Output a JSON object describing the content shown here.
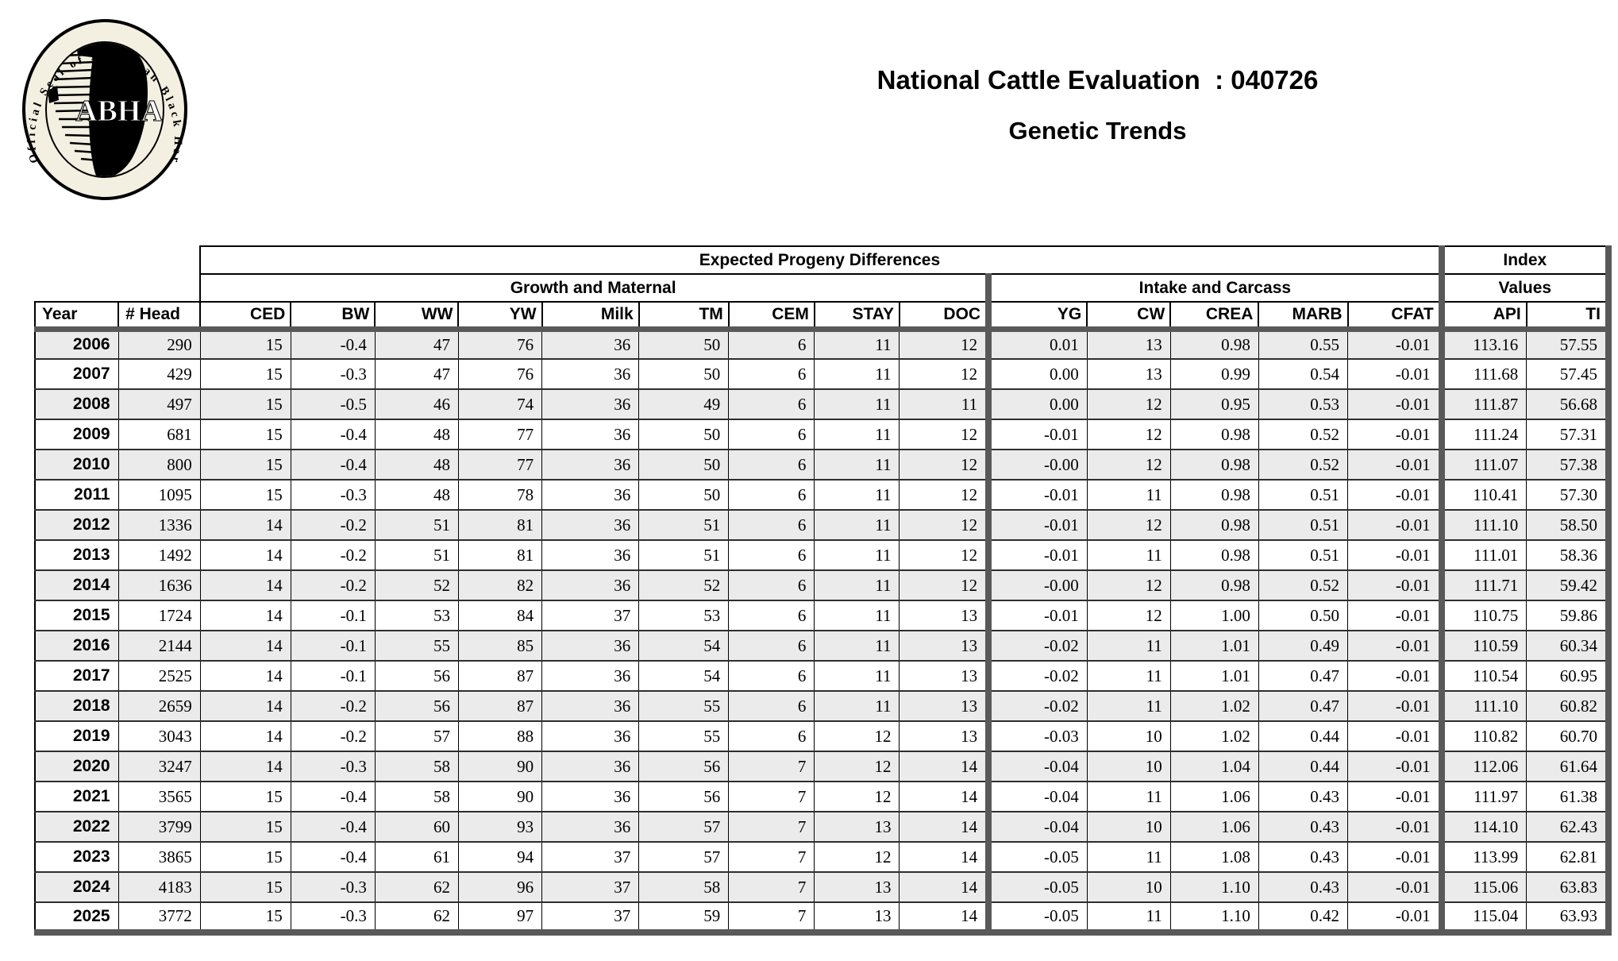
{
  "logo": {
    "seal_text": "Official Seal of American Black Hereford Association",
    "seal_abbr": "ABHA"
  },
  "header": {
    "title": "National Cattle Evaluation  : 040726",
    "subtitle": "Genetic Trends"
  },
  "table": {
    "group_headers": {
      "epd": "Expected Progeny Differences",
      "growth": "Growth and Maternal",
      "intake": "Intake and Carcass",
      "index": "Index",
      "values": "Values"
    },
    "columns": [
      "Year",
      "# Head",
      "CED",
      "BW",
      "WW",
      "YW",
      "Milk",
      "TM",
      "CEM",
      "STAY",
      "DOC",
      "YG",
      "CW",
      "CREA",
      "MARB",
      "CFAT",
      "API",
      "TI"
    ],
    "column_keys": [
      "year",
      "head",
      "ced",
      "bw",
      "ww",
      "yw",
      "milk",
      "tm",
      "cem",
      "stay",
      "doc",
      "yg",
      "cw",
      "crea",
      "marb",
      "cfat",
      "api",
      "ti"
    ],
    "rows": [
      [
        "2006",
        "290",
        "15",
        "-0.4",
        "47",
        "76",
        "36",
        "50",
        "6",
        "11",
        "12",
        "0.01",
        "13",
        "0.98",
        "0.55",
        "-0.01",
        "113.16",
        "57.55"
      ],
      [
        "2007",
        "429",
        "15",
        "-0.3",
        "47",
        "76",
        "36",
        "50",
        "6",
        "11",
        "12",
        "0.00",
        "13",
        "0.99",
        "0.54",
        "-0.01",
        "111.68",
        "57.45"
      ],
      [
        "2008",
        "497",
        "15",
        "-0.5",
        "46",
        "74",
        "36",
        "49",
        "6",
        "11",
        "11",
        "0.00",
        "12",
        "0.95",
        "0.53",
        "-0.01",
        "111.87",
        "56.68"
      ],
      [
        "2009",
        "681",
        "15",
        "-0.4",
        "48",
        "77",
        "36",
        "50",
        "6",
        "11",
        "12",
        "-0.01",
        "12",
        "0.98",
        "0.52",
        "-0.01",
        "111.24",
        "57.31"
      ],
      [
        "2010",
        "800",
        "15",
        "-0.4",
        "48",
        "77",
        "36",
        "50",
        "6",
        "11",
        "12",
        "-0.00",
        "12",
        "0.98",
        "0.52",
        "-0.01",
        "111.07",
        "57.38"
      ],
      [
        "2011",
        "1095",
        "15",
        "-0.3",
        "48",
        "78",
        "36",
        "50",
        "6",
        "11",
        "12",
        "-0.01",
        "11",
        "0.98",
        "0.51",
        "-0.01",
        "110.41",
        "57.30"
      ],
      [
        "2012",
        "1336",
        "14",
        "-0.2",
        "51",
        "81",
        "36",
        "51",
        "6",
        "11",
        "12",
        "-0.01",
        "12",
        "0.98",
        "0.51",
        "-0.01",
        "111.10",
        "58.50"
      ],
      [
        "2013",
        "1492",
        "14",
        "-0.2",
        "51",
        "81",
        "36",
        "51",
        "6",
        "11",
        "12",
        "-0.01",
        "11",
        "0.98",
        "0.51",
        "-0.01",
        "111.01",
        "58.36"
      ],
      [
        "2014",
        "1636",
        "14",
        "-0.2",
        "52",
        "82",
        "36",
        "52",
        "6",
        "11",
        "12",
        "-0.00",
        "12",
        "0.98",
        "0.52",
        "-0.01",
        "111.71",
        "59.42"
      ],
      [
        "2015",
        "1724",
        "14",
        "-0.1",
        "53",
        "84",
        "37",
        "53",
        "6",
        "11",
        "13",
        "-0.01",
        "12",
        "1.00",
        "0.50",
        "-0.01",
        "110.75",
        "59.86"
      ],
      [
        "2016",
        "2144",
        "14",
        "-0.1",
        "55",
        "85",
        "36",
        "54",
        "6",
        "11",
        "13",
        "-0.02",
        "11",
        "1.01",
        "0.49",
        "-0.01",
        "110.59",
        "60.34"
      ],
      [
        "2017",
        "2525",
        "14",
        "-0.1",
        "56",
        "87",
        "36",
        "54",
        "6",
        "11",
        "13",
        "-0.02",
        "11",
        "1.01",
        "0.47",
        "-0.01",
        "110.54",
        "60.95"
      ],
      [
        "2018",
        "2659",
        "14",
        "-0.2",
        "56",
        "87",
        "36",
        "55",
        "6",
        "11",
        "13",
        "-0.02",
        "11",
        "1.02",
        "0.47",
        "-0.01",
        "111.10",
        "60.82"
      ],
      [
        "2019",
        "3043",
        "14",
        "-0.2",
        "57",
        "88",
        "36",
        "55",
        "6",
        "12",
        "13",
        "-0.03",
        "10",
        "1.02",
        "0.44",
        "-0.01",
        "110.82",
        "60.70"
      ],
      [
        "2020",
        "3247",
        "14",
        "-0.3",
        "58",
        "90",
        "36",
        "56",
        "7",
        "12",
        "14",
        "-0.04",
        "10",
        "1.04",
        "0.44",
        "-0.01",
        "112.06",
        "61.64"
      ],
      [
        "2021",
        "3565",
        "15",
        "-0.4",
        "58",
        "90",
        "36",
        "56",
        "7",
        "12",
        "14",
        "-0.04",
        "11",
        "1.06",
        "0.43",
        "-0.01",
        "111.97",
        "61.38"
      ],
      [
        "2022",
        "3799",
        "15",
        "-0.4",
        "60",
        "93",
        "36",
        "57",
        "7",
        "13",
        "14",
        "-0.04",
        "10",
        "1.06",
        "0.43",
        "-0.01",
        "114.10",
        "62.43"
      ],
      [
        "2023",
        "3865",
        "15",
        "-0.4",
        "61",
        "94",
        "37",
        "57",
        "7",
        "12",
        "14",
        "-0.05",
        "11",
        "1.08",
        "0.43",
        "-0.01",
        "113.99",
        "62.81"
      ],
      [
        "2024",
        "4183",
        "15",
        "-0.3",
        "62",
        "96",
        "37",
        "58",
        "7",
        "13",
        "14",
        "-0.05",
        "10",
        "1.10",
        "0.43",
        "-0.01",
        "115.06",
        "63.83"
      ],
      [
        "2025",
        "3772",
        "15",
        "-0.3",
        "62",
        "97",
        "37",
        "59",
        "7",
        "13",
        "14",
        "-0.05",
        "11",
        "1.10",
        "0.42",
        "-0.01",
        "115.04",
        "63.93"
      ]
    ]
  },
  "colors": {
    "stripe": "#ebebeb",
    "bar": "#595959",
    "border": "#000000",
    "seal_bg": "#f3f0e2"
  }
}
